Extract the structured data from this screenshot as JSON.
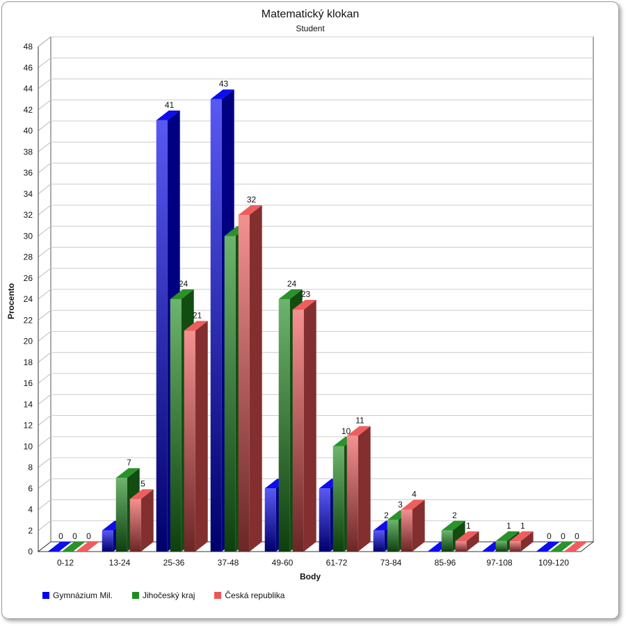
{
  "chart_data": {
    "type": "bar",
    "title": "Matematický klokan",
    "subtitle": "Student",
    "xlabel": "Body",
    "ylabel": "Procento",
    "ylim": [
      0,
      48
    ],
    "ytick_step": 2,
    "grid": true,
    "legend_position": "bottom-left",
    "categories": [
      "0-12",
      "13-24",
      "25-36",
      "37-48",
      "49-60",
      "61-72",
      "73-84",
      "85-96",
      "97-108",
      "109-120"
    ],
    "series": [
      {
        "name": "Gymnázium Mil.",
        "color": "#0000ee",
        "values": [
          0,
          2,
          41,
          43,
          6,
          6,
          2,
          0,
          0,
          0
        ],
        "labels": [
          "0",
          "",
          "41",
          "43",
          "",
          "",
          "2",
          "",
          "",
          "0"
        ]
      },
      {
        "name": "Jihočeský kraj",
        "color": "#1f8c1f",
        "values": [
          0,
          7,
          24,
          30,
          24,
          10,
          3,
          2,
          1,
          0
        ],
        "labels": [
          "0",
          "7",
          "24",
          "",
          "24",
          "10",
          "3",
          "2",
          "1",
          "0"
        ]
      },
      {
        "name": "Česká republika",
        "color": "#ee5555",
        "values": [
          0,
          5,
          21,
          32,
          23,
          11,
          4,
          1,
          1,
          0
        ],
        "labels": [
          "0",
          "5",
          "21",
          "32",
          "23",
          "11",
          "4",
          "1",
          "1",
          "0"
        ]
      }
    ]
  }
}
